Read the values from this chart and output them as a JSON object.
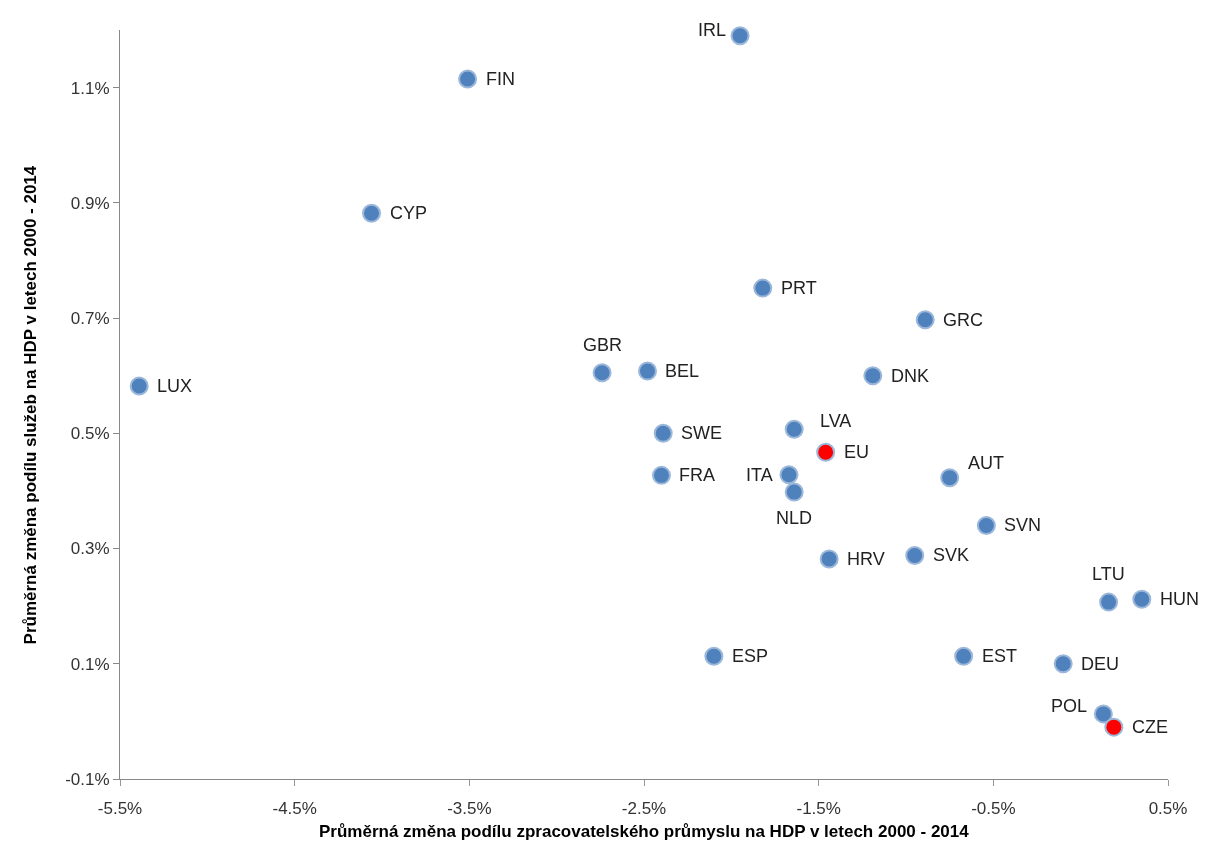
{
  "chart_data": {
    "type": "scatter",
    "xlabel": "Průměrná změna podílu zpracovatelského průmyslu na HDP v letech 2000 - 2014",
    "ylabel": "Průměrná změna podílu služeb na HDP v letech 2000 - 2014",
    "x": [
      -1.95,
      -3.51,
      -4.06,
      -1.82,
      -0.89,
      -2.74,
      -2.48,
      -5.39,
      -1.19,
      -2.39,
      -1.64,
      -1.46,
      -2.4,
      -1.67,
      -1.64,
      -0.75,
      -0.54,
      -1.44,
      -0.95,
      0.16,
      0.35,
      -2.1,
      -0.67,
      -0.1,
      0.13,
      0.19
    ],
    "values": [
      1.19,
      1.115,
      0.882,
      0.752,
      0.697,
      0.605,
      0.608,
      0.582,
      0.6,
      0.5,
      0.507,
      0.467,
      0.427,
      0.428,
      0.398,
      0.423,
      0.34,
      0.282,
      0.288,
      0.207,
      0.212,
      0.113,
      0.113,
      0.1,
      0.013,
      -0.01
    ],
    "colors": [
      "#4f81bd",
      "#4f81bd",
      "#4f81bd",
      "#4f81bd",
      "#4f81bd",
      "#4f81bd",
      "#4f81bd",
      "#4f81bd",
      "#4f81bd",
      "#4f81bd",
      "#4f81bd",
      "#ff0000",
      "#4f81bd",
      "#4f81bd",
      "#4f81bd",
      "#4f81bd",
      "#4f81bd",
      "#4f81bd",
      "#4f81bd",
      "#4f81bd",
      "#4f81bd",
      "#4f81bd",
      "#4f81bd",
      "#4f81bd",
      "#4f81bd",
      "#ff0000"
    ],
    "annotations": [
      {
        "text": "IRL",
        "x": -1.95,
        "y": 1.19
      },
      {
        "text": "FIN",
        "x": -3.51,
        "y": 1.115
      },
      {
        "text": "CYP",
        "x": -4.06,
        "y": 0.882
      },
      {
        "text": "PRT",
        "x": -1.82,
        "y": 0.752
      },
      {
        "text": "GRC",
        "x": -0.89,
        "y": 0.697
      },
      {
        "text": "GBR",
        "x": -2.74,
        "y": 0.605
      },
      {
        "text": "BEL",
        "x": -2.48,
        "y": 0.608
      },
      {
        "text": "LUX",
        "x": -5.39,
        "y": 0.582
      },
      {
        "text": "DNK",
        "x": -1.19,
        "y": 0.6
      },
      {
        "text": "SWE",
        "x": -2.39,
        "y": 0.5
      },
      {
        "text": "LVA",
        "x": -1.64,
        "y": 0.507
      },
      {
        "text": "EU",
        "x": -1.46,
        "y": 0.467
      },
      {
        "text": "FRA",
        "x": -2.4,
        "y": 0.427
      },
      {
        "text": "ITA",
        "x": -1.67,
        "y": 0.428
      },
      {
        "text": "NLD",
        "x": -1.64,
        "y": 0.398
      },
      {
        "text": "AUT",
        "x": -0.75,
        "y": 0.423
      },
      {
        "text": "SVN",
        "x": -0.54,
        "y": 0.34
      },
      {
        "text": "HRV",
        "x": -1.44,
        "y": 0.282
      },
      {
        "text": "SVK",
        "x": -0.95,
        "y": 0.288
      },
      {
        "text": "LTU",
        "x": 0.16,
        "y": 0.207
      },
      {
        "text": "HUN",
        "x": 0.35,
        "y": 0.212
      },
      {
        "text": "ESP",
        "x": -2.1,
        "y": 0.113
      },
      {
        "text": "EST",
        "x": -0.67,
        "y": 0.113
      },
      {
        "text": "DEU",
        "x": -0.1,
        "y": 0.1
      },
      {
        "text": "POL",
        "x": 0.13,
        "y": 0.013
      },
      {
        "text": "CZE",
        "x": 0.19,
        "y": -0.01
      }
    ],
    "xlim": [
      -5.5,
      0.5
    ],
    "xticks": [
      {
        "value": -5.5,
        "label": "-5.5%"
      },
      {
        "value": -4.5,
        "label": "-4.5%"
      },
      {
        "value": -3.5,
        "label": "-3.5%"
      },
      {
        "value": -2.5,
        "label": "-2.5%"
      },
      {
        "value": -1.5,
        "label": "-1.5%"
      },
      {
        "value": -0.5,
        "label": "-0.5%"
      },
      {
        "value": 0.5,
        "label": "0.5%"
      }
    ],
    "ylim": [
      -0.1,
      1.2
    ],
    "yticks": [
      {
        "value": -0.1,
        "label": "-0.1%"
      },
      {
        "value": 0.1,
        "label": "0.1%"
      },
      {
        "value": 0.3,
        "label": "0.3%"
      },
      {
        "value": 0.5,
        "label": "0.5%"
      },
      {
        "value": 0.7,
        "label": "0.7%"
      },
      {
        "value": 0.9,
        "label": "0.9%"
      },
      {
        "value": 1.1,
        "label": "1.1%"
      }
    ],
    "grid": false,
    "marker": "circle"
  }
}
